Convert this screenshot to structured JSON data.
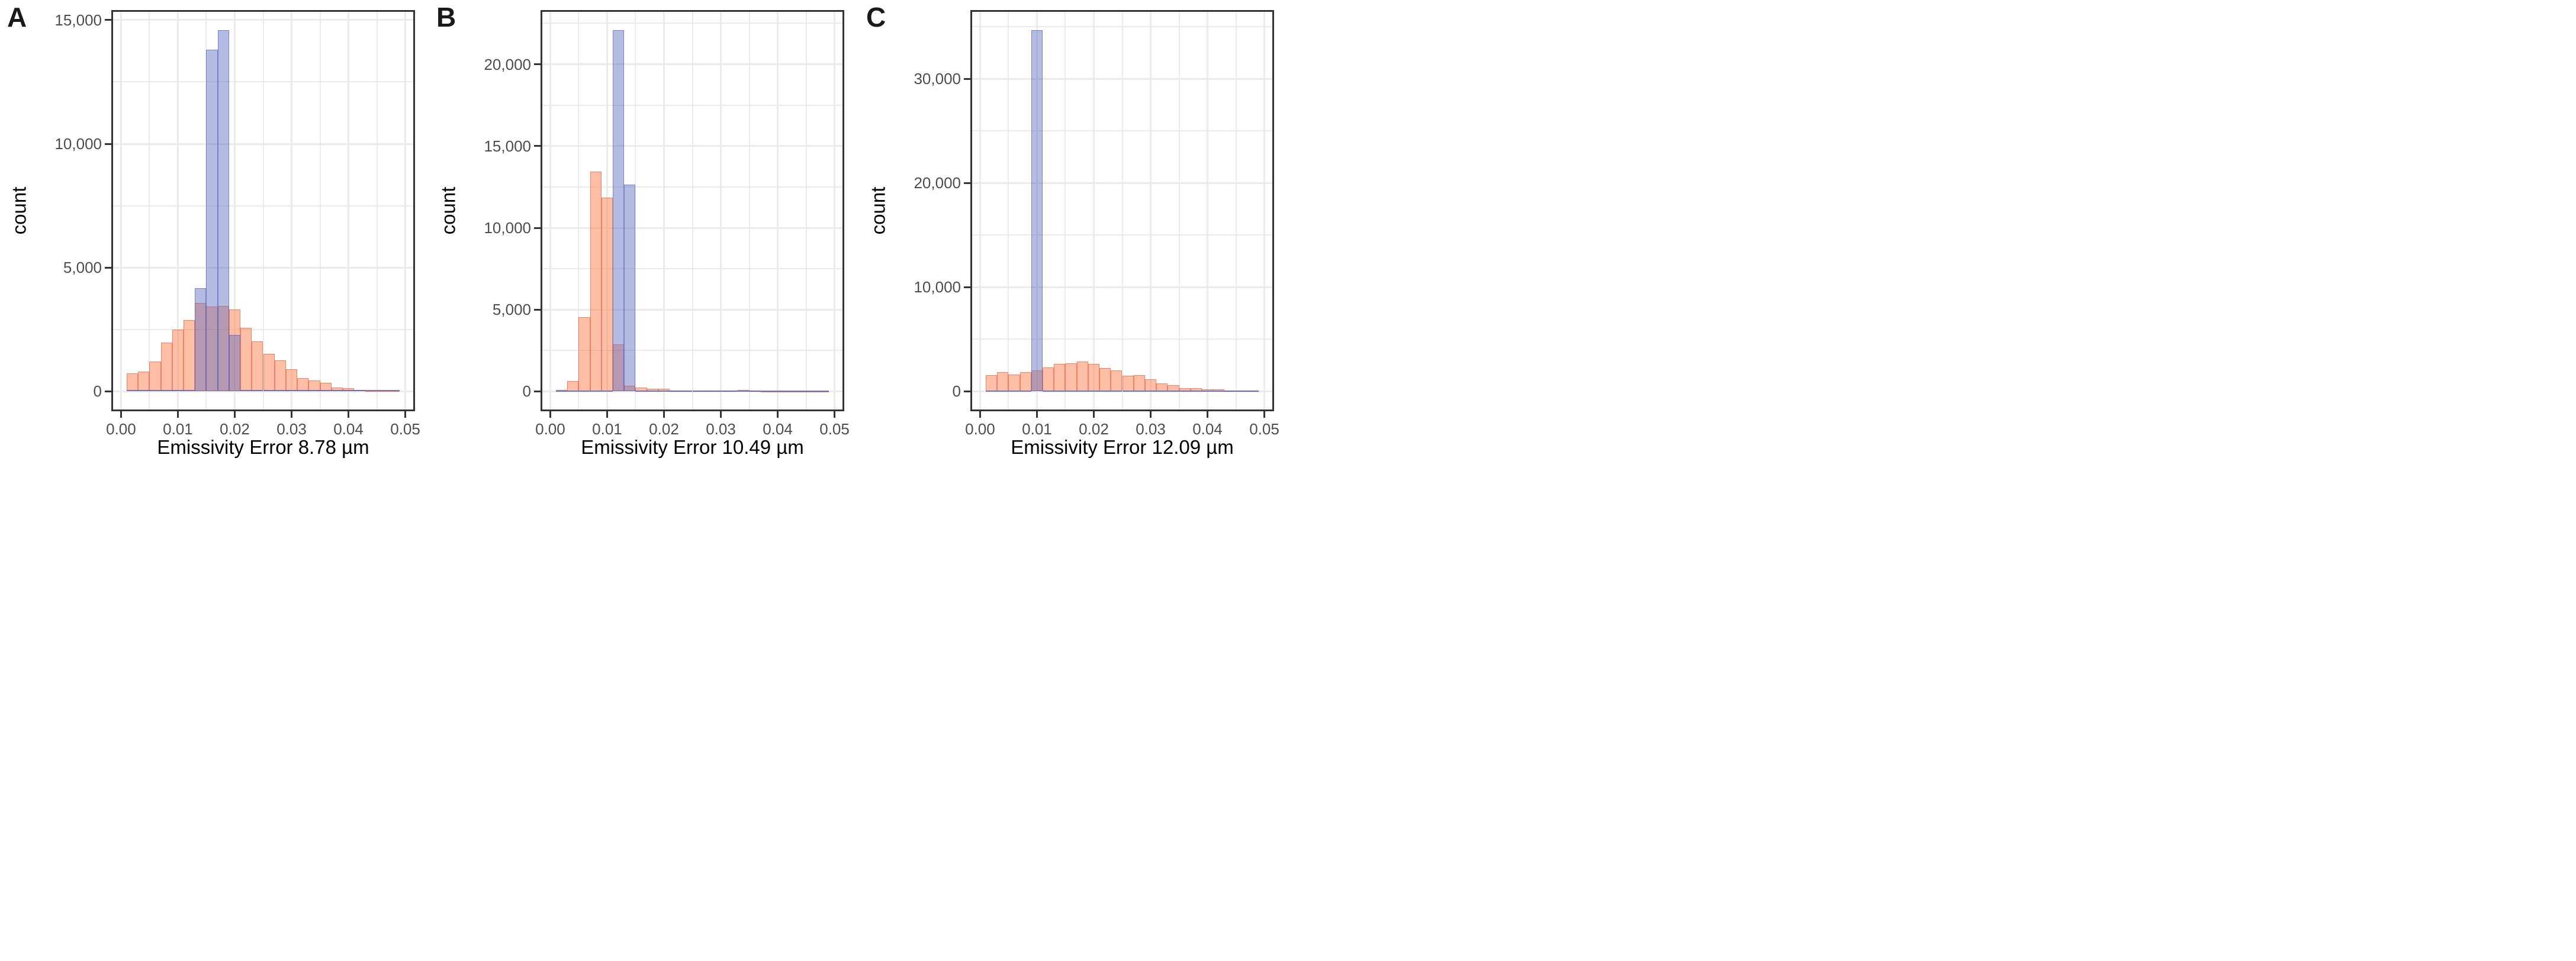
{
  "figure": {
    "background": "#ffffff",
    "panel_border_color": "#333333",
    "grid_color": "#EBEBEB",
    "tick_text_color": "#4D4D4D",
    "axis_title_color": "#000000",
    "orange_fill": "rgba(255,127,80,0.5)",
    "orange_stroke": "rgba(233,90,56,0.62)",
    "blue_fill": "rgba(92,107,192,0.45)",
    "blue_stroke": "rgba(80,95,180,0.6)"
  },
  "chart_data": [
    {
      "type": "bar",
      "subtype": "overlaid-histograms",
      "panel_label": "A",
      "xlabel": "Emissivity Error 8.78 µm",
      "ylabel": "count",
      "grid": true,
      "legend": false,
      "bin_start": 0.001,
      "bin_width": 0.002,
      "x_domain": [
        -0.0014,
        0.0514
      ],
      "x_ticks": [
        0,
        0.01,
        0.02,
        0.03,
        0.04,
        0.05
      ],
      "x_tick_labels": [
        "0.00",
        "0.01",
        "0.02",
        "0.03",
        "0.04",
        "0.05"
      ],
      "x_minor": [
        0.005,
        0.015,
        0.025,
        0.035,
        0.045
      ],
      "y_ticks": [
        0,
        5000,
        10000,
        15000
      ],
      "y_tick_labels": [
        "0",
        "5,000",
        "10,000",
        "15,000"
      ],
      "y_minor": [
        2500,
        7500,
        12500
      ],
      "y_max_bar": 14600,
      "series": [
        {
          "name": "orange-histogram",
          "values": [
            720,
            790,
            1210,
            1980,
            2490,
            2880,
            3560,
            3420,
            3460,
            3310,
            2570,
            2030,
            1520,
            1250,
            900,
            545,
            440,
            340,
            160,
            140,
            60,
            45,
            30,
            40
          ]
        },
        {
          "name": "blue-histogram",
          "values": [
            60,
            60,
            60,
            60,
            60,
            60,
            4180,
            13800,
            14600,
            2290,
            60,
            60,
            60,
            60,
            60,
            60,
            60,
            60,
            60,
            60,
            60,
            60,
            60,
            60
          ]
        }
      ]
    },
    {
      "type": "bar",
      "subtype": "overlaid-histograms",
      "panel_label": "B",
      "xlabel": "Emissivity Error 10.49 µm",
      "ylabel": "count",
      "grid": true,
      "legend": false,
      "bin_start": 0.001,
      "bin_width": 0.002,
      "x_domain": [
        -0.0014,
        0.0514
      ],
      "x_ticks": [
        0,
        0.01,
        0.02,
        0.03,
        0.04,
        0.05
      ],
      "x_tick_labels": [
        "0.00",
        "0.01",
        "0.02",
        "0.03",
        "0.04",
        "0.05"
      ],
      "x_minor": [
        0.005,
        0.015,
        0.025,
        0.035,
        0.045
      ],
      "y_ticks": [
        0,
        5000,
        10000,
        15000,
        20000
      ],
      "y_tick_labels": [
        "0",
        "5,000",
        "10,000",
        "15,000",
        "20,000"
      ],
      "y_minor": [
        2500,
        7500,
        12500,
        17500,
        22500
      ],
      "y_max_bar": 22100,
      "series": [
        {
          "name": "orange-histogram",
          "values": [
            100,
            620,
            4550,
            13420,
            11860,
            2870,
            330,
            240,
            150,
            150,
            60,
            50,
            45,
            40,
            40,
            40,
            90,
            35,
            30,
            25,
            25,
            20,
            20,
            20
          ]
        },
        {
          "name": "blue-histogram",
          "values": [
            40,
            40,
            40,
            40,
            40,
            22100,
            12650,
            40,
            40,
            40,
            40,
            40,
            40,
            40,
            40,
            40,
            40,
            40,
            40,
            40,
            40,
            40,
            40,
            40
          ]
        }
      ]
    },
    {
      "type": "bar",
      "subtype": "overlaid-histograms",
      "panel_label": "C",
      "xlabel": "Emissivity Error 12.09 µm",
      "ylabel": "count",
      "grid": true,
      "legend": false,
      "bin_start": 0.001,
      "bin_width": 0.002,
      "x_domain": [
        -0.0014,
        0.0514
      ],
      "x_ticks": [
        0,
        0.01,
        0.02,
        0.03,
        0.04,
        0.05
      ],
      "x_tick_labels": [
        "0.00",
        "0.01",
        "0.02",
        "0.03",
        "0.04",
        "0.05"
      ],
      "x_minor": [
        0.005,
        0.015,
        0.025,
        0.035,
        0.045
      ],
      "y_ticks": [
        0,
        10000,
        20000,
        30000
      ],
      "y_tick_labels": [
        "0",
        "10,000",
        "20,000",
        "30,000"
      ],
      "y_minor": [
        5000,
        15000,
        25000,
        35000
      ],
      "y_max_bar": 34700,
      "series": [
        {
          "name": "orange-histogram",
          "values": [
            1540,
            1860,
            1630,
            1860,
            2000,
            2300,
            2630,
            2715,
            2855,
            2640,
            2255,
            2000,
            1485,
            1550,
            1175,
            780,
            610,
            290,
            330,
            170,
            170,
            95,
            95,
            65
          ]
        },
        {
          "name": "blue-histogram",
          "values": [
            60,
            60,
            60,
            60,
            34700,
            60,
            60,
            60,
            60,
            60,
            60,
            60,
            60,
            60,
            60,
            60,
            60,
            60,
            60,
            60,
            60,
            60,
            60,
            60
          ]
        }
      ]
    }
  ]
}
